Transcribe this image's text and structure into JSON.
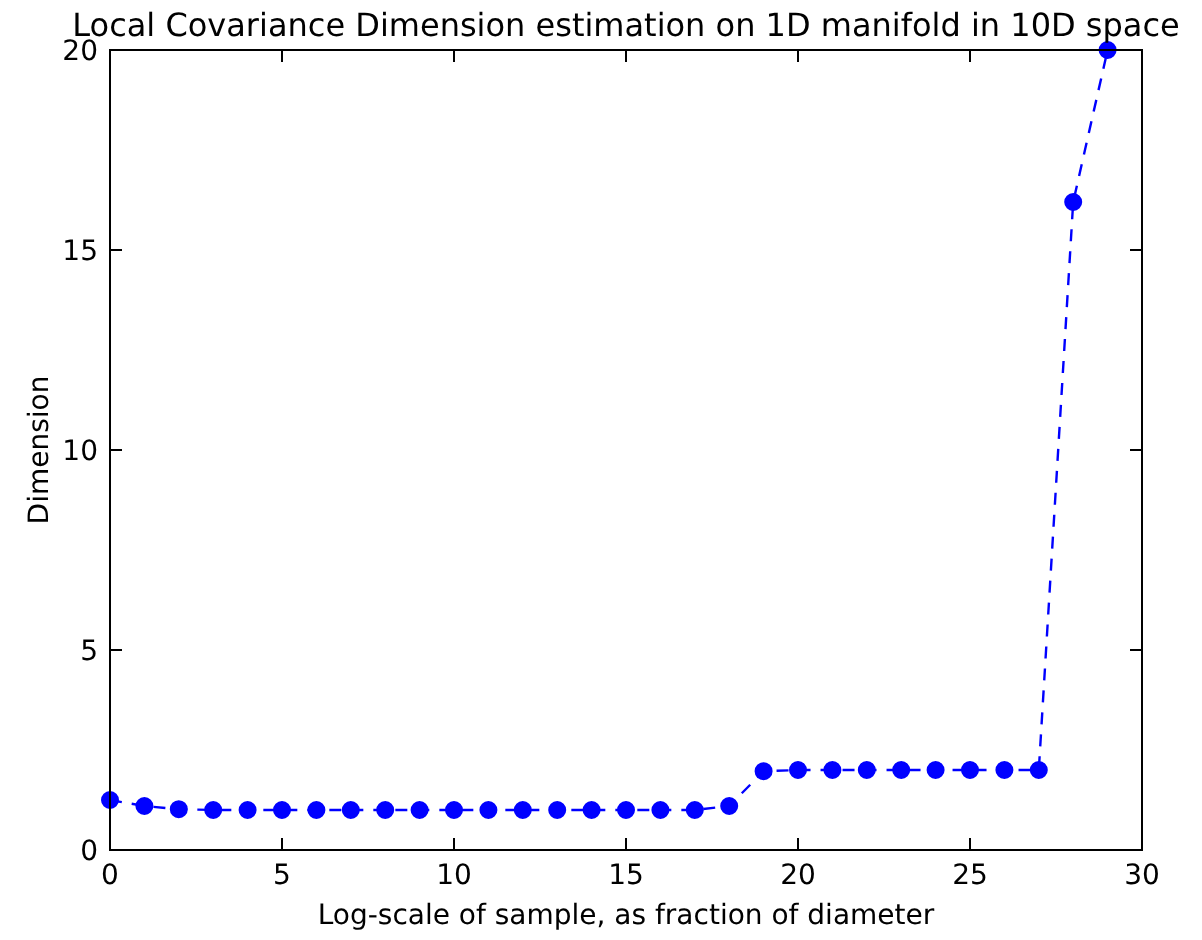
{
  "chart_data": {
    "type": "line",
    "title": "Local Covariance Dimension estimation on 1D manifold in 10D space",
    "xlabel": "Log-scale of sample, as fraction of diameter",
    "ylabel": "Dimension",
    "x": [
      0,
      1,
      2,
      3,
      4,
      5,
      6,
      7,
      8,
      9,
      10,
      11,
      12,
      13,
      14,
      15,
      16,
      17,
      18,
      19,
      20,
      21,
      22,
      23,
      24,
      25,
      26,
      27,
      28,
      29
    ],
    "series": [
      {
        "color": "#0000ff",
        "values": [
          1.25,
          1.1,
          1.02,
          1.0,
          1.0,
          1.0,
          1.0,
          1.0,
          1.0,
          1.0,
          1.0,
          1.0,
          1.0,
          1.0,
          1.0,
          1.0,
          1.0,
          1.0,
          1.1,
          1.97,
          2.0,
          2.0,
          2.0,
          2.0,
          2.0,
          2.0,
          2.0,
          2.0,
          16.2,
          20.0
        ]
      }
    ],
    "xlim": [
      0,
      30
    ],
    "ylim": [
      0,
      20
    ],
    "xticks": [
      0,
      5,
      10,
      15,
      20,
      25,
      30
    ],
    "yticks": [
      0,
      5,
      10,
      15,
      20
    ],
    "marker": "circle",
    "line_style": "dashed"
  }
}
